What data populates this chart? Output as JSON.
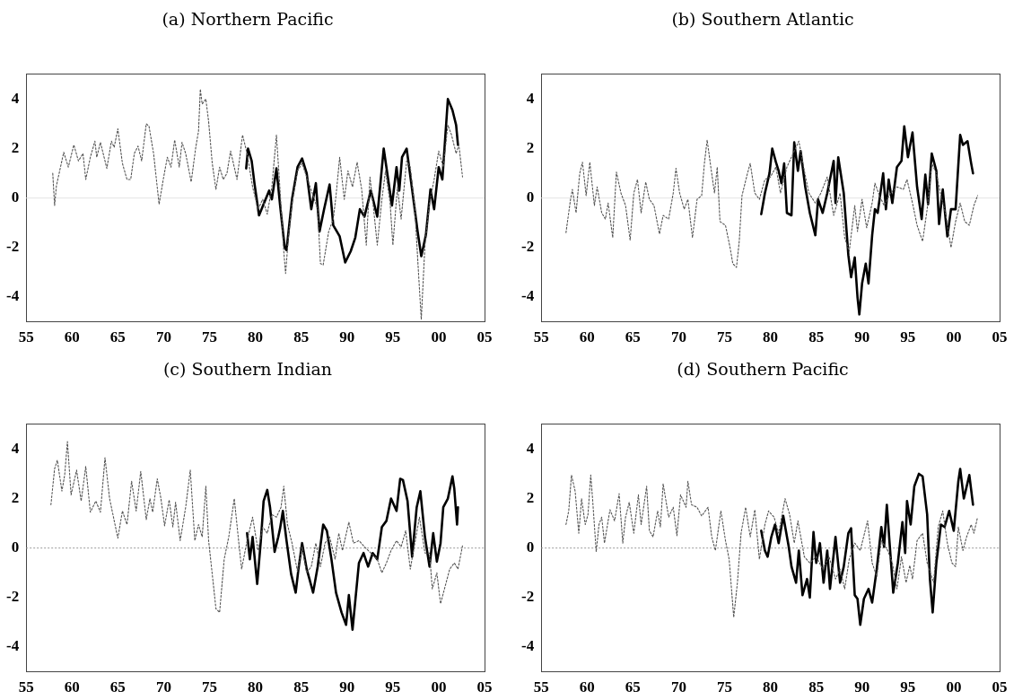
{
  "chart_data": [
    {
      "type": "line",
      "title": "(a) Northern Pacific",
      "xlim": [
        1955,
        2005
      ],
      "ylim": [
        -5,
        5
      ],
      "xticks": [
        {
          "value": 1955,
          "label": "55"
        },
        {
          "value": 1960,
          "label": "60"
        },
        {
          "value": 1965,
          "label": "65"
        },
        {
          "value": 1970,
          "label": "70"
        },
        {
          "value": 1975,
          "label": "75"
        },
        {
          "value": 1980,
          "label": "80"
        },
        {
          "value": 1985,
          "label": "85"
        },
        {
          "value": 1990,
          "label": "90"
        },
        {
          "value": 1995,
          "label": "95"
        },
        {
          "value": 2000,
          "label": "00"
        },
        {
          "value": 2005,
          "label": "05"
        }
      ],
      "yticks": [
        -4,
        -2,
        0,
        2,
        4
      ],
      "grid": false,
      "legend": false,
      "marker": "none",
      "ref_lines": [
        {
          "axis": "y",
          "value": 0,
          "color": "#e4e4e4",
          "line_style": "solid"
        }
      ],
      "series": [
        {
          "color": "#555555",
          "line_style": "dotted",
          "x": [
            1957.9,
            1958.1,
            1958.3,
            1959.1,
            1959.6,
            1960.2,
            1960.7,
            1961.2,
            1961.5,
            1962.0,
            1962.5,
            1962.7,
            1963.1,
            1963.8,
            1964.3,
            1964.6,
            1965.0,
            1965.5,
            1966.0,
            1966.4,
            1966.8,
            1967.2,
            1967.6,
            1968.1,
            1968.4,
            1968.9,
            1969.5,
            1970.0,
            1970.4,
            1970.8,
            1971.2,
            1971.7,
            1972.0,
            1972.4,
            1973.0,
            1973.5,
            1973.8,
            1974.0,
            1974.2,
            1974.6,
            1974.9,
            1975.3,
            1975.7,
            1976.1,
            1976.5,
            1976.9,
            1977.3,
            1977.7,
            1978.0,
            1978.6,
            1979.1,
            1979.7,
            1980.3,
            1980.8,
            1981.3,
            1981.8,
            1982.3,
            1982.6,
            1983.1,
            1983.3,
            1983.6,
            1984.0,
            1984.6,
            1985.1,
            1985.6,
            1986.3,
            1986.8,
            1987.1,
            1987.4,
            1988.0,
            1988.5,
            1988.8,
            1989.2,
            1989.7,
            1990.1,
            1990.6,
            1991.1,
            1991.6,
            1992.1,
            1992.5,
            1992.9,
            1993.3,
            1993.8,
            1994.2,
            1994.7,
            1995.0,
            1995.5,
            1995.9,
            1996.5,
            1996.9,
            1997.4,
            1997.8,
            1998.1,
            1998.5,
            1999.0,
            1999.5,
            2000.0,
            2000.5,
            2001.0,
            2001.4,
            2001.9,
            2002.2,
            2002.6
          ],
          "values": [
            1.0,
            -0.3,
            0.5,
            1.85,
            1.25,
            2.15,
            1.5,
            1.8,
            0.75,
            1.65,
            2.3,
            1.65,
            2.25,
            1.2,
            2.3,
            2.05,
            2.8,
            1.4,
            0.75,
            0.75,
            1.8,
            2.1,
            1.5,
            3.0,
            2.9,
            1.8,
            -0.25,
            0.85,
            1.65,
            1.25,
            2.35,
            1.25,
            2.25,
            1.8,
            0.65,
            2.05,
            2.7,
            4.4,
            3.8,
            4.0,
            3.1,
            1.4,
            0.35,
            1.25,
            0.75,
            1.0,
            1.9,
            1.25,
            0.75,
            2.55,
            1.8,
            0.45,
            -0.45,
            -0.05,
            -0.65,
            0.45,
            2.55,
            0.85,
            -2.15,
            -3.05,
            -1.6,
            -0.2,
            1.1,
            1.4,
            0.85,
            0.1,
            -0.45,
            -2.65,
            -2.7,
            -1.35,
            -0.85,
            0.1,
            1.65,
            -0.05,
            1.1,
            0.45,
            1.45,
            0.35,
            -1.9,
            0.85,
            -0.45,
            -1.9,
            -0.05,
            1.1,
            -0.2,
            -1.9,
            0.45,
            -0.85,
            1.5,
            1.25,
            -0.45,
            -3.05,
            -4.9,
            -1.9,
            -0.2,
            0.75,
            1.9,
            1.25,
            2.95,
            2.55,
            1.8,
            2.15,
            0.85
          ]
        },
        {
          "color": "#000000",
          "line_style": "solid",
          "x": [
            1979.0,
            1979.2,
            1979.6,
            1979.9,
            1980.4,
            1980.9,
            1981.5,
            1981.8,
            1982.3,
            1982.7,
            1983.2,
            1983.4,
            1984.0,
            1984.6,
            1985.1,
            1985.6,
            1986.1,
            1986.6,
            1987.0,
            1987.5,
            1988.1,
            1988.5,
            1989.2,
            1989.8,
            1990.4,
            1990.9,
            1991.4,
            1991.9,
            1992.6,
            1993.3,
            1994.0,
            1994.9,
            1995.4,
            1995.7,
            1996.0,
            1996.5,
            1997.1,
            1997.7,
            1998.1,
            1998.6,
            1999.1,
            1999.5,
            2000.0,
            2000.4,
            2001.0,
            2001.5,
            2001.9,
            2002.1
          ],
          "values": [
            1.2,
            2.0,
            1.5,
            0.6,
            -0.7,
            -0.25,
            0.3,
            -0.05,
            1.2,
            -0.3,
            -2.0,
            -2.1,
            -0.05,
            1.25,
            1.6,
            1.0,
            -0.45,
            0.6,
            -1.35,
            -0.45,
            0.55,
            -1.1,
            -1.55,
            -2.6,
            -2.15,
            -1.6,
            -0.45,
            -0.75,
            0.3,
            -0.75,
            2.0,
            -0.3,
            1.25,
            0.3,
            1.65,
            2.0,
            0.35,
            -1.35,
            -2.35,
            -1.5,
            0.35,
            -0.45,
            1.25,
            0.75,
            4.0,
            3.55,
            2.95,
            2.15
          ]
        }
      ]
    },
    {
      "type": "line",
      "title": "(b) Southern Atlantic",
      "xlim": [
        1955,
        2005
      ],
      "ylim": [
        -5,
        5
      ],
      "xticks": [
        {
          "value": 1955,
          "label": "55"
        },
        {
          "value": 1960,
          "label": "60"
        },
        {
          "value": 1965,
          "label": "65"
        },
        {
          "value": 1970,
          "label": "70"
        },
        {
          "value": 1975,
          "label": "75"
        },
        {
          "value": 1980,
          "label": "80"
        },
        {
          "value": 1985,
          "label": "85"
        },
        {
          "value": 1990,
          "label": "90"
        },
        {
          "value": 1995,
          "label": "95"
        },
        {
          "value": 2000,
          "label": "00"
        },
        {
          "value": 2005,
          "label": "05"
        }
      ],
      "yticks": [
        -4,
        -2,
        0,
        2,
        4
      ],
      "grid": false,
      "legend": false,
      "marker": "none",
      "ref_lines": [
        {
          "axis": "y",
          "value": 0,
          "color": "#e4e4e4",
          "line_style": "solid"
        }
      ],
      "series": [
        {
          "color": "#555555",
          "line_style": "dotted",
          "x": [
            1957.7,
            1958.2,
            1958.4,
            1958.8,
            1959.2,
            1959.5,
            1959.9,
            1960.3,
            1960.8,
            1961.1,
            1961.6,
            1962.0,
            1962.3,
            1962.8,
            1963.2,
            1963.7,
            1964.2,
            1964.7,
            1965.1,
            1965.5,
            1965.9,
            1966.4,
            1966.8,
            1967.3,
            1967.9,
            1968.3,
            1968.9,
            1969.4,
            1969.7,
            1970.1,
            1970.6,
            1971.0,
            1971.5,
            1972.0,
            1972.5,
            1972.8,
            1973.1,
            1973.5,
            1973.9,
            1974.2,
            1974.5,
            1975.1,
            1975.6,
            1975.9,
            1976.3,
            1976.6,
            1976.9,
            1977.5,
            1977.8,
            1978.3,
            1978.8,
            1979.4,
            1980.0,
            1980.6,
            1981.1,
            1981.8,
            1982.6,
            1983.1,
            1983.7,
            1984.2,
            1984.9,
            1985.5,
            1986.2,
            1986.9,
            1987.6,
            1988.1,
            1988.6,
            1989.2,
            1989.5,
            1990.0,
            1990.5,
            1991.1,
            1991.4,
            1991.9,
            1992.4,
            1993.1,
            1993.8,
            1994.5,
            1994.9,
            1995.5,
            1996.0,
            1996.6,
            1997.1,
            1997.6,
            1998.1,
            1998.6,
            1999.1,
            1999.7,
            2000.2,
            2000.7,
            2001.2,
            2001.7,
            2002.2,
            2002.6
          ],
          "values": [
            -1.4,
            -0.05,
            0.35,
            -0.6,
            1.0,
            1.45,
            0.1,
            1.45,
            -0.3,
            0.45,
            -0.6,
            -0.85,
            -0.2,
            -1.6,
            1.05,
            0.2,
            -0.3,
            -1.7,
            0.2,
            0.75,
            -0.6,
            0.65,
            -0.05,
            -0.3,
            -1.45,
            -0.7,
            -0.85,
            0.2,
            1.2,
            0.2,
            -0.45,
            -0.05,
            -1.6,
            -0.05,
            0.1,
            1.4,
            2.35,
            1.25,
            0.2,
            1.25,
            -0.95,
            -1.1,
            -2.0,
            -2.65,
            -2.8,
            -1.75,
            0.1,
            1.0,
            1.4,
            0.2,
            -0.05,
            0.75,
            0.85,
            1.25,
            0.2,
            1.25,
            1.9,
            2.3,
            1.1,
            0.2,
            -0.2,
            0.2,
            0.85,
            -0.7,
            0.2,
            -1.6,
            -2.15,
            -0.3,
            -1.35,
            -0.05,
            -1.2,
            -0.2,
            0.6,
            0.1,
            -0.3,
            0.2,
            0.45,
            0.35,
            0.75,
            -0.2,
            -1.1,
            -1.75,
            -0.45,
            1.4,
            1.0,
            0.1,
            -0.6,
            -2.0,
            -0.95,
            -0.2,
            -0.95,
            -1.1,
            -0.3,
            0.1
          ]
        },
        {
          "color": "#000000",
          "line_style": "solid",
          "x": [
            1979.0,
            1979.4,
            1979.9,
            1980.2,
            1980.6,
            1980.9,
            1981.2,
            1981.5,
            1981.8,
            1982.3,
            1982.6,
            1983.0,
            1983.3,
            1983.8,
            1984.3,
            1984.9,
            1985.2,
            1985.7,
            1986.2,
            1986.9,
            1987.1,
            1987.4,
            1988.0,
            1988.5,
            1988.8,
            1989.2,
            1989.5,
            1989.7,
            1990.0,
            1990.4,
            1990.7,
            1991.1,
            1991.4,
            1991.7,
            1992.3,
            1992.6,
            1992.9,
            1993.3,
            1993.8,
            1994.3,
            1994.6,
            1995.0,
            1995.5,
            1996.0,
            1996.5,
            1996.9,
            1997.2,
            1997.6,
            1998.1,
            1998.4,
            1998.8,
            1999.3,
            1999.7,
            2000.2,
            2000.7,
            2001.0,
            2001.5,
            2001.9,
            2002.1
          ],
          "values": [
            -0.65,
            0.2,
            1.0,
            2.0,
            1.45,
            1.1,
            0.6,
            1.4,
            -0.6,
            -0.7,
            2.25,
            1.1,
            1.9,
            0.45,
            -0.6,
            -1.5,
            -0.05,
            -0.6,
            0.2,
            1.5,
            -0.2,
            1.65,
            0.2,
            -2.3,
            -3.2,
            -2.4,
            -4.0,
            -4.7,
            -3.45,
            -2.65,
            -3.45,
            -1.5,
            -0.45,
            -0.6,
            1.0,
            -0.45,
            0.75,
            -0.2,
            1.25,
            1.5,
            2.9,
            1.65,
            2.65,
            0.45,
            -0.85,
            0.95,
            -0.25,
            1.8,
            1.1,
            -1.05,
            0.35,
            -1.55,
            -0.45,
            -0.45,
            2.55,
            2.15,
            2.3,
            1.4,
            1.0
          ]
        }
      ]
    },
    {
      "type": "line",
      "title": "(c) Southern Indian",
      "xlim": [
        1955,
        2005
      ],
      "ylim": [
        -5,
        5
      ],
      "xticks": [
        {
          "value": 1955,
          "label": "55"
        },
        {
          "value": 1960,
          "label": "60"
        },
        {
          "value": 1965,
          "label": "65"
        },
        {
          "value": 1970,
          "label": "70"
        },
        {
          "value": 1975,
          "label": "75"
        },
        {
          "value": 1980,
          "label": "80"
        },
        {
          "value": 1985,
          "label": "85"
        },
        {
          "value": 1990,
          "label": "90"
        },
        {
          "value": 1995,
          "label": "95"
        },
        {
          "value": 2000,
          "label": "00"
        },
        {
          "value": 2005,
          "label": "05"
        }
      ],
      "yticks": [
        -4,
        -2,
        0,
        2,
        4
      ],
      "grid": false,
      "legend": false,
      "marker": "none",
      "ref_lines": [
        {
          "axis": "y",
          "value": 0,
          "color": "#999999",
          "line_style": "dotted"
        }
      ],
      "series": [
        {
          "color": "#555555",
          "line_style": "dotted",
          "x": [
            1957.7,
            1958.1,
            1958.4,
            1958.9,
            1959.2,
            1959.5,
            1959.9,
            1960.5,
            1961.0,
            1961.5,
            1962.0,
            1962.6,
            1963.1,
            1963.6,
            1964.1,
            1965.0,
            1965.5,
            1966.0,
            1966.5,
            1967.0,
            1967.5,
            1968.1,
            1968.5,
            1968.8,
            1969.3,
            1969.7,
            1970.1,
            1970.6,
            1971.0,
            1971.3,
            1971.8,
            1972.4,
            1972.9,
            1973.4,
            1973.8,
            1974.2,
            1974.6,
            1974.9,
            1975.4,
            1975.7,
            1976.1,
            1976.6,
            1977.1,
            1977.7,
            1978.2,
            1978.5,
            1979.1,
            1979.7,
            1980.3,
            1980.8,
            1981.3,
            1981.8,
            1982.3,
            1982.8,
            1983.1,
            1983.5,
            1984.0,
            1984.6,
            1985.1,
            1985.6,
            1986.1,
            1986.6,
            1987.1,
            1987.6,
            1988.1,
            1988.7,
            1989.1,
            1989.5,
            1990.2,
            1990.7,
            1991.3,
            1991.9,
            1992.6,
            1993.3,
            1993.8,
            1994.3,
            1994.8,
            1995.4,
            1995.9,
            1996.4,
            1996.9,
            1997.4,
            1997.9,
            1998.5,
            1999.0,
            1999.3,
            1999.8,
            2000.2,
            2000.7,
            2001.2,
            2001.7,
            2002.1,
            2002.6
          ],
          "values": [
            1.75,
            3.2,
            3.55,
            2.3,
            2.95,
            4.3,
            2.15,
            3.15,
            1.9,
            3.3,
            1.45,
            1.9,
            1.45,
            3.65,
            2.0,
            0.4,
            1.5,
            0.95,
            2.7,
            1.5,
            3.1,
            1.15,
            2.0,
            1.45,
            2.8,
            2.0,
            0.9,
            1.95,
            0.85,
            1.85,
            0.3,
            1.65,
            3.15,
            0.3,
            0.95,
            0.45,
            2.5,
            0.3,
            -1.4,
            -2.45,
            -2.6,
            -0.45,
            0.45,
            2.0,
            0.2,
            -0.85,
            0.3,
            1.25,
            -0.1,
            0.85,
            0.6,
            1.35,
            1.25,
            1.65,
            2.5,
            0.95,
            0.2,
            -0.95,
            0.05,
            -1.0,
            -0.75,
            0.2,
            -0.75,
            0.2,
            0.45,
            -0.45,
            0.6,
            -0.1,
            1.05,
            0.2,
            0.3,
            0.05,
            -0.2,
            -0.45,
            -1.0,
            -0.6,
            -0.1,
            0.3,
            0.05,
            0.7,
            -0.85,
            0.2,
            1.25,
            -0.2,
            -0.2,
            -1.65,
            -1.0,
            -2.25,
            -1.55,
            -0.85,
            -0.6,
            -0.85,
            0.1
          ]
        },
        {
          "color": "#000000",
          "line_style": "solid",
          "x": [
            1979.1,
            1979.4,
            1979.7,
            1980.2,
            1980.6,
            1980.9,
            1981.3,
            1981.6,
            1982.1,
            1982.5,
            1982.7,
            1983.0,
            1983.4,
            1983.9,
            1984.4,
            1984.7,
            1985.1,
            1985.6,
            1985.9,
            1986.3,
            1986.8,
            1987.4,
            1987.8,
            1988.3,
            1988.8,
            1989.4,
            1989.9,
            1990.2,
            1990.6,
            1991.3,
            1991.8,
            1992.3,
            1992.8,
            1993.3,
            1993.8,
            1994.3,
            1994.8,
            1995.4,
            1995.8,
            1996.1,
            1996.6,
            1997.1,
            1997.6,
            1998.0,
            1998.5,
            1999.0,
            1999.4,
            1999.8,
            2000.2,
            2000.5,
            2001.0,
            2001.5,
            2001.7,
            2002.0,
            2002.1
          ],
          "values": [
            0.6,
            -0.45,
            0.45,
            -1.45,
            0.3,
            1.9,
            2.35,
            1.65,
            -0.15,
            0.45,
            0.8,
            1.5,
            0.3,
            -1.05,
            -1.8,
            -0.85,
            0.2,
            -0.85,
            -1.25,
            -1.8,
            -0.75,
            0.95,
            0.7,
            -0.45,
            -1.8,
            -2.6,
            -3.1,
            -1.9,
            -3.3,
            -0.6,
            -0.2,
            -0.75,
            -0.2,
            -0.45,
            0.85,
            1.1,
            2.0,
            1.5,
            2.8,
            2.75,
            1.9,
            -0.35,
            1.65,
            2.3,
            0.45,
            -0.75,
            0.6,
            -0.55,
            0.2,
            1.65,
            2.0,
            2.9,
            2.4,
            0.95,
            1.65
          ]
        }
      ]
    },
    {
      "type": "line",
      "title": "(d) Southern Pacific",
      "xlim": [
        1955,
        2005
      ],
      "ylim": [
        -5,
        5
      ],
      "xticks": [
        {
          "value": 1955,
          "label": "55"
        },
        {
          "value": 1960,
          "label": "60"
        },
        {
          "value": 1965,
          "label": "65"
        },
        {
          "value": 1970,
          "label": "70"
        },
        {
          "value": 1975,
          "label": "75"
        },
        {
          "value": 1980,
          "label": "80"
        },
        {
          "value": 1985,
          "label": "85"
        },
        {
          "value": 1990,
          "label": "90"
        },
        {
          "value": 1995,
          "label": "95"
        },
        {
          "value": 2000,
          "label": "00"
        },
        {
          "value": 2005,
          "label": "05"
        }
      ],
      "yticks": [
        -4,
        -2,
        0,
        2,
        4
      ],
      "grid": false,
      "legend": false,
      "marker": "none",
      "ref_lines": [
        {
          "axis": "y",
          "value": 0,
          "color": "#999999",
          "line_style": "dotted"
        }
      ],
      "series": [
        {
          "color": "#555555",
          "line_style": "dotted",
          "x": [
            1957.7,
            1958.0,
            1958.3,
            1958.7,
            1959.1,
            1959.4,
            1959.8,
            1960.1,
            1960.4,
            1960.6,
            1961.0,
            1961.3,
            1961.6,
            1961.9,
            1962.5,
            1963.0,
            1963.5,
            1963.9,
            1964.2,
            1964.6,
            1965.1,
            1965.6,
            1965.9,
            1966.5,
            1966.8,
            1967.2,
            1967.7,
            1968.0,
            1968.3,
            1968.9,
            1969.4,
            1969.8,
            1970.2,
            1970.8,
            1971.0,
            1971.4,
            1972.0,
            1972.5,
            1973.2,
            1973.6,
            1974.0,
            1974.6,
            1975.1,
            1975.5,
            1976.0,
            1976.4,
            1976.8,
            1977.3,
            1977.8,
            1978.3,
            1978.8,
            1979.4,
            1979.8,
            1980.4,
            1980.9,
            1981.6,
            1982.1,
            1982.6,
            1983.0,
            1983.7,
            1984.3,
            1985.0,
            1985.7,
            1986.4,
            1987.1,
            1987.6,
            1988.1,
            1988.6,
            1989.2,
            1989.8,
            1990.6,
            1991.1,
            1991.6,
            1992.1,
            1992.8,
            1993.3,
            1993.8,
            1994.3,
            1994.8,
            1995.2,
            1995.5,
            1996.0,
            1996.6,
            1997.1,
            1997.8,
            1998.3,
            1998.8,
            1999.3,
            1999.8,
            2000.2,
            2000.5,
            2001.0,
            2001.4,
            2001.9,
            2002.2,
            2002.6
          ],
          "values": [
            0.95,
            1.5,
            2.95,
            2.3,
            0.6,
            2.0,
            0.95,
            1.35,
            2.95,
            2.0,
            -0.15,
            0.95,
            1.25,
            0.2,
            1.55,
            1.1,
            2.2,
            0.2,
            1.25,
            1.85,
            0.6,
            2.15,
            0.95,
            2.5,
            0.7,
            0.45,
            1.5,
            0.85,
            2.6,
            1.25,
            1.65,
            0.5,
            2.15,
            1.65,
            2.7,
            1.75,
            1.65,
            1.3,
            1.65,
            0.45,
            -0.1,
            1.5,
            0.3,
            -0.45,
            -2.8,
            -1.4,
            0.6,
            1.65,
            0.45,
            1.55,
            -0.45,
            0.95,
            1.5,
            1.25,
            0.6,
            2.0,
            1.35,
            0.2,
            1.1,
            -0.35,
            -0.6,
            -0.35,
            -0.85,
            -0.35,
            -1.25,
            -0.85,
            -1.65,
            -0.45,
            0.2,
            -0.1,
            1.1,
            -0.6,
            -1.15,
            0.3,
            -0.1,
            -0.6,
            -1.65,
            -0.35,
            -1.4,
            -0.7,
            -1.25,
            0.3,
            0.6,
            -0.6,
            -1.4,
            0.85,
            1.5,
            0.2,
            -0.6,
            -0.75,
            0.85,
            -0.1,
            0.45,
            0.95,
            0.6,
            1.25
          ]
        },
        {
          "color": "#000000",
          "line_style": "solid",
          "x": [
            1979.0,
            1979.4,
            1979.7,
            1980.1,
            1980.5,
            1980.9,
            1981.4,
            1982.0,
            1982.3,
            1982.8,
            1983.1,
            1983.5,
            1984.0,
            1984.3,
            1984.7,
            1985.0,
            1985.4,
            1985.8,
            1986.2,
            1986.5,
            1987.1,
            1987.6,
            1988.0,
            1988.5,
            1988.8,
            1989.2,
            1989.5,
            1989.8,
            1990.2,
            1990.7,
            1991.1,
            1991.6,
            1992.1,
            1992.4,
            1992.7,
            1993.0,
            1993.4,
            1993.9,
            1994.4,
            1994.7,
            1994.9,
            1995.3,
            1995.7,
            1996.2,
            1996.6,
            1997.1,
            1997.4,
            1997.7,
            1998.1,
            1998.6,
            1999.0,
            1999.5,
            2000.0,
            2000.5,
            2000.7,
            2001.1,
            2001.7,
            2002.1
          ],
          "values": [
            0.7,
            -0.1,
            -0.35,
            0.45,
            0.95,
            0.2,
            1.3,
            0.05,
            -0.75,
            -1.4,
            -0.1,
            -1.9,
            -1.25,
            -2.0,
            0.65,
            -0.6,
            0.2,
            -1.4,
            -0.1,
            -1.65,
            0.45,
            -1.4,
            -0.75,
            0.6,
            0.8,
            -1.9,
            -2.05,
            -3.1,
            -2.05,
            -1.65,
            -2.2,
            -0.85,
            0.85,
            0.05,
            1.75,
            0.2,
            -1.8,
            -0.6,
            1.05,
            -0.2,
            1.9,
            0.95,
            2.5,
            3.0,
            2.9,
            1.35,
            -1.25,
            -2.6,
            -0.6,
            0.95,
            0.85,
            1.5,
            0.7,
            2.7,
            3.2,
            2.0,
            2.95,
            1.75
          ]
        }
      ]
    }
  ]
}
